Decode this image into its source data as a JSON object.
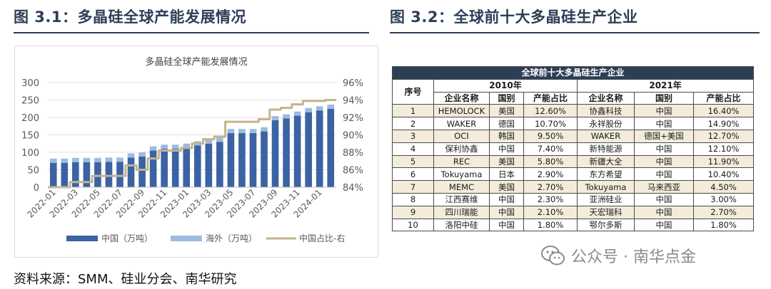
{
  "fig1": {
    "title": "图 3.1：多晶硅全球产能发展情况"
  },
  "fig2": {
    "title": "图 3.2：全球前十大多晶硅生产企业"
  },
  "chart_data": {
    "type": "bar",
    "title": "多晶硅全球产能发展情况",
    "stacked": true,
    "x_tick_labels": [
      "2022-01",
      "2022-03",
      "2022-05",
      "2022-07",
      "2022-09",
      "2022-11",
      "2023-01",
      "2023-03",
      "2023-05",
      "2023-07",
      "2023-09",
      "2023-11",
      "2024-01"
    ],
    "categories": [
      "2022-01",
      "2022-02",
      "2022-03",
      "2022-04",
      "2022-05",
      "2022-06",
      "2022-07",
      "2022-08",
      "2022-09",
      "2022-10",
      "2022-11",
      "2022-12",
      "2023-01",
      "2023-02",
      "2023-03",
      "2023-04",
      "2023-05",
      "2023-06",
      "2023-07",
      "2023-08",
      "2023-09",
      "2023-10",
      "2023-11",
      "2023-12",
      "2024-01",
      "2024-02"
    ],
    "series": [
      {
        "name": "中国（万吨）",
        "axis": "left",
        "color": "#3b63a4",
        "values": [
          70,
          70,
          72,
          72,
          72,
          73,
          73,
          85,
          88,
          105,
          110,
          110,
          113,
          120,
          125,
          130,
          155,
          155,
          155,
          160,
          192,
          197,
          205,
          215,
          220,
          225
        ]
      },
      {
        "name": "海外（万吨）",
        "axis": "left",
        "color": "#9dbbe0",
        "values": [
          12,
          12,
          12,
          12,
          12,
          12,
          12,
          12,
          12,
          12,
          12,
          12,
          12,
          12,
          12,
          12,
          12,
          12,
          12,
          12,
          12,
          12,
          12,
          12,
          12,
          12
        ]
      },
      {
        "name": "中国占比-右",
        "axis": "right",
        "type": "line",
        "color": "#c4b38e",
        "values": [
          84.0,
          84.0,
          84.6,
          84.6,
          85.3,
          85.3,
          85.3,
          86.5,
          86.0,
          87.3,
          88.2,
          88.2,
          88.5,
          89.0,
          89.5,
          89.8,
          91.5,
          91.5,
          91.5,
          91.8,
          92.9,
          93.1,
          93.5,
          93.9,
          93.9,
          94.0
        ]
      }
    ],
    "ylim_left": [
      0,
      300
    ],
    "yticks_left": [
      0,
      50,
      100,
      150,
      200,
      250,
      300
    ],
    "ylim_right": [
      84,
      96
    ],
    "yticks_right_labels": [
      "84%",
      "86%",
      "88%",
      "90%",
      "92%",
      "94%",
      "96%"
    ],
    "legend_position": "bottom"
  },
  "table": {
    "banner": "全球前十大多晶硅生产企业",
    "index_header": "序号",
    "year_2010": "2010年",
    "year_2021": "2021年",
    "col_headers": [
      "企业名称",
      "国别",
      "产能占比",
      "企业名称",
      "国别",
      "产能占比"
    ],
    "rows": [
      [
        "1",
        "HEMOLOCK",
        "美国",
        "12.60%",
        "协鑫科技",
        "中国",
        "16.40%"
      ],
      [
        "2",
        "WAKER",
        "德国",
        "10.70%",
        "永祥股份",
        "中国",
        "14.90%"
      ],
      [
        "3",
        "OCI",
        "韩国",
        "9.50%",
        "WAKER",
        "德国+美国",
        "12.70%"
      ],
      [
        "4",
        "保利协鑫",
        "中国",
        "7.40%",
        "新特能源",
        "中国",
        "12.10%"
      ],
      [
        "5",
        "REC",
        "美国",
        "5.80%",
        "新疆大全",
        "中国",
        "11.90%"
      ],
      [
        "6",
        "Tokuyama",
        "日本",
        "2.90%",
        "东方希望",
        "中国",
        "10.40%"
      ],
      [
        "7",
        "MEMC",
        "美国",
        "2.70%",
        "Tokuyama",
        "马来西亚",
        "4.50%"
      ],
      [
        "8",
        "江西赛维",
        "中国",
        "2.30%",
        "亚洲硅业",
        "中国",
        "3.00%"
      ],
      [
        "9",
        "四川瑞能",
        "中国",
        "2.10%",
        "天宏瑞科",
        "中国",
        "2.70%"
      ],
      [
        "10",
        "洛阳中硅",
        "中国",
        "1.80%",
        "鄂尔多斯",
        "中国",
        "1.80%"
      ]
    ]
  },
  "source": "资料来源：SMM、硅业分会、南华研究",
  "watermark": "公众号 · 南华点金"
}
